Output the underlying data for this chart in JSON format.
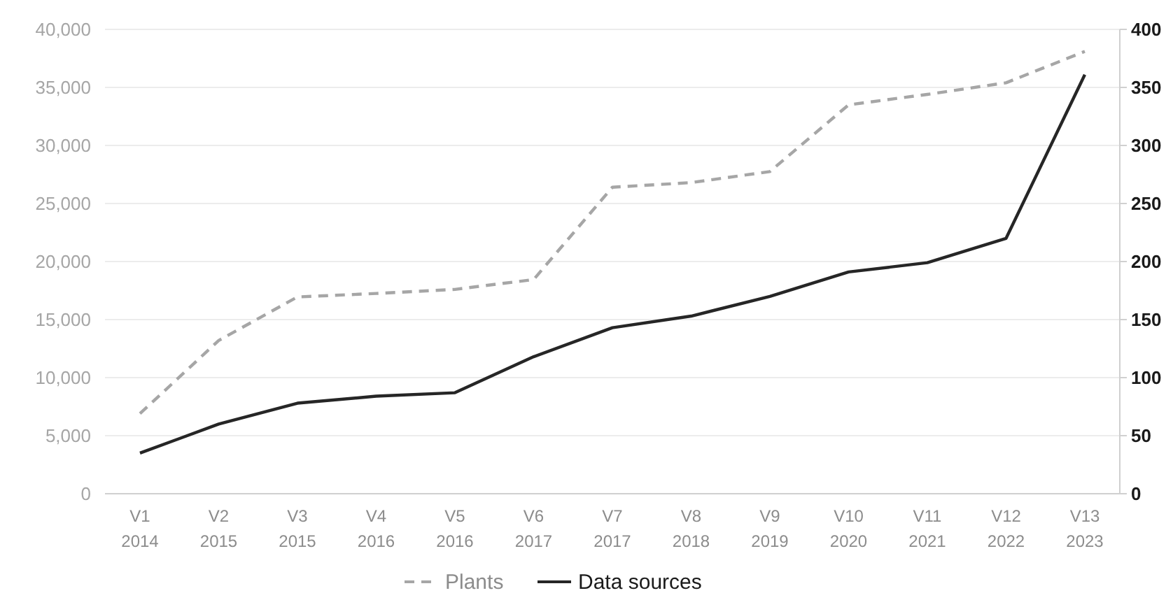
{
  "chart_data": {
    "type": "line",
    "categories": [
      "V1\n2014",
      "V2\n2015",
      "V3\n2015",
      "V4\n2016",
      "V5\n2016",
      "V6\n2017",
      "V7\n2017",
      "V8\n2018",
      "V9\n2019",
      "V10\n2020",
      "V11\n2021",
      "V12\n2022",
      "V13\n2023"
    ],
    "series": [
      {
        "name": "Plants",
        "color": "#a6a6a6",
        "line_style": "dashed",
        "values": [
          6900,
          13200,
          16950,
          17250,
          17600,
          18450,
          26400,
          26800,
          27750,
          33500,
          34400,
          35400,
          38100
        ]
      },
      {
        "name": "Data sources",
        "color": "#262626",
        "line_style": "solid",
        "axis": "y2",
        "values": [
          35,
          60,
          78,
          84,
          87,
          118,
          143,
          153,
          170,
          191,
          199,
          220,
          361
        ]
      }
    ],
    "ylim": [
      0,
      40000
    ],
    "yticks": [
      {
        "value": 0,
        "label": "0"
      },
      {
        "value": 5000,
        "label": "5,000"
      },
      {
        "value": 10000,
        "label": "10,000"
      },
      {
        "value": 15000,
        "label": "15,000"
      },
      {
        "value": 20000,
        "label": "20,000"
      },
      {
        "value": 25000,
        "label": "25,000"
      },
      {
        "value": 30000,
        "label": "30,000"
      },
      {
        "value": 35000,
        "label": "35,000"
      },
      {
        "value": 40000,
        "label": "40,000"
      }
    ],
    "y2lim": [
      0,
      400
    ],
    "y2ticks": [
      0,
      50,
      100,
      150,
      200,
      250,
      300,
      350,
      400
    ],
    "grid": "y",
    "legend": "bottom",
    "marker": "none"
  }
}
